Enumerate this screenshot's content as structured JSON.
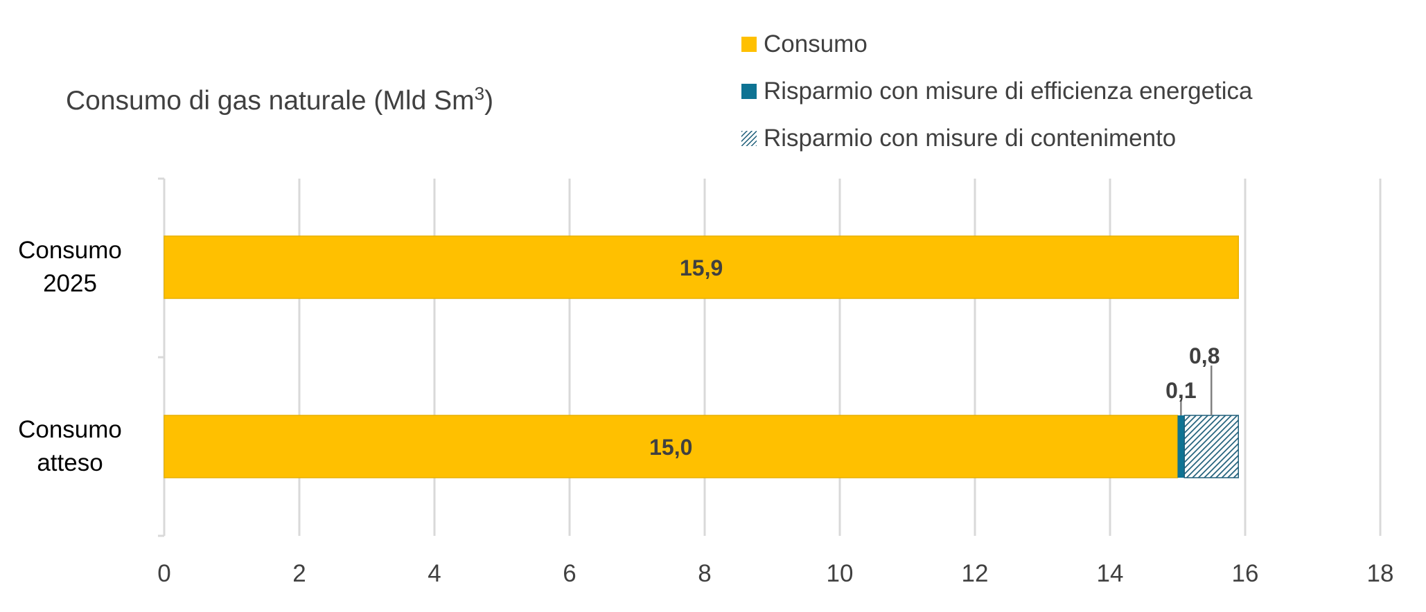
{
  "chart_data": {
    "type": "bar",
    "orientation": "horizontal",
    "stacked": true,
    "title": "Consumo di gas naturale (Mld Sm",
    "title_superscript": "3",
    "title_suffix": ")",
    "categories": [
      "Consumo 2025",
      "Consumo atteso"
    ],
    "category_lines": [
      [
        "Consumo",
        "2025"
      ],
      [
        "Consumo",
        "atteso"
      ]
    ],
    "series": [
      {
        "name": "Consumo",
        "values": [
          15.9,
          15.0
        ],
        "labels": [
          "15,9",
          "15,0"
        ],
        "color": "#FFC000",
        "pattern": "solid"
      },
      {
        "name": "Risparmio con misure di efficienza energetica",
        "values": [
          0,
          0.1
        ],
        "labels": [
          "",
          "0,1"
        ],
        "color": "#0E7393",
        "pattern": "solid"
      },
      {
        "name": "Risparmio con misure di contenimento",
        "values": [
          0,
          0.8
        ],
        "labels": [
          "",
          "0,8"
        ],
        "color": "#1F5F7A",
        "pattern": "hatch"
      }
    ],
    "xlim": [
      0,
      18
    ],
    "xticks": [
      0,
      2,
      4,
      6,
      8,
      10,
      12,
      14,
      16,
      18
    ],
    "xtick_labels": [
      "0",
      "2",
      "4",
      "6",
      "8",
      "10",
      "12",
      "14",
      "16",
      "18"
    ],
    "grid": true,
    "legend_position": "top-right"
  }
}
